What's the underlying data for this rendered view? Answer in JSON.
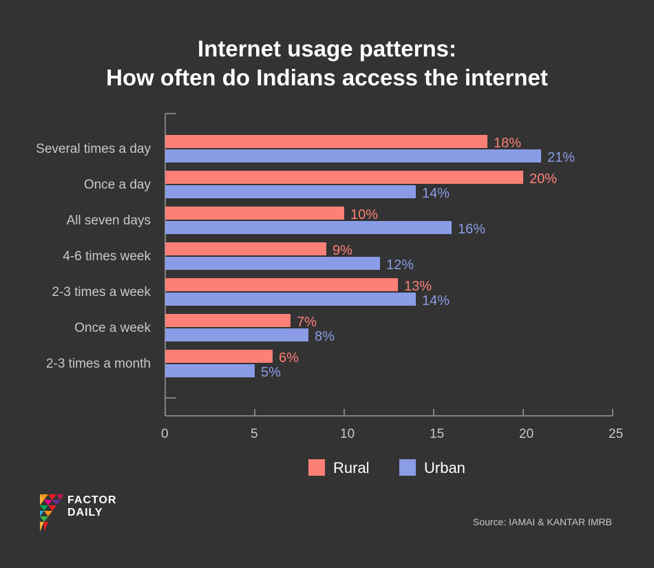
{
  "title_line1": "Internet usage patterns:",
  "title_line2": "How often do Indians access the internet",
  "source": "Source: IAMAI & KANTAR IMRB",
  "logo": {
    "line1": "FACTOR",
    "line2": "DAILY"
  },
  "colors": {
    "rural": "#fd8077",
    "urban": "#8a9ce6",
    "axis": "#9a9a9a",
    "background": "#333333"
  },
  "chart_data": {
    "type": "bar",
    "orientation": "horizontal",
    "categories": [
      "Several times a day",
      "Once a day",
      "All seven days",
      "4-6 times week",
      "2-3 times a week",
      "Once a week",
      "2-3 times a month"
    ],
    "series": [
      {
        "name": "Rural",
        "values": [
          18,
          20,
          10,
          9,
          13,
          7,
          6
        ],
        "labels": [
          "18%",
          "20%",
          "10%",
          "9%",
          "13%",
          "7%",
          "6%"
        ]
      },
      {
        "name": "Urban",
        "values": [
          21,
          14,
          16,
          12,
          14,
          8,
          5
        ],
        "labels": [
          "21%",
          "14%",
          "16%",
          "12%",
          "14%",
          "8%",
          "5%"
        ]
      }
    ],
    "xlim": [
      0,
      25
    ],
    "xticks": [
      0,
      5,
      10,
      15,
      20,
      25
    ],
    "grid": false,
    "legend": "bottom"
  }
}
